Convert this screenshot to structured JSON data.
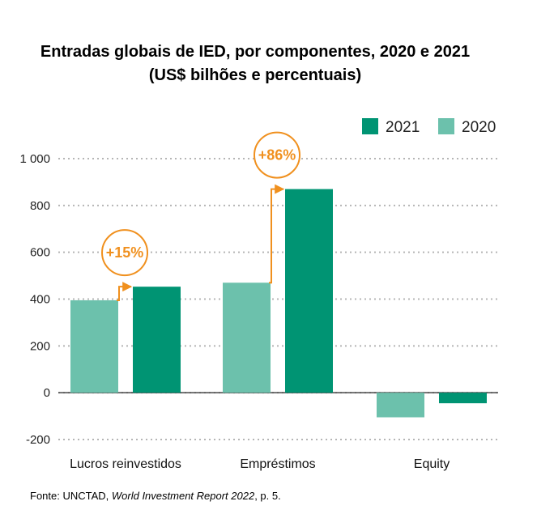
{
  "title_line1": "Entradas globais de IED, por componentes, 2020 e 2021",
  "title_line2": "(US$ bilhões e percentuais)",
  "source": {
    "prefix": "Fonte: UNCTAD, ",
    "italic": "World Investment Report 2022",
    "suffix": ", p. 5."
  },
  "colors": {
    "s2020": "#6cc1ac",
    "s2021": "#009473",
    "annotation": "#f0901e",
    "grid": "#b5b5b5"
  },
  "chart_data": {
    "type": "bar",
    "categories": [
      "Lucros reinvestidos",
      "Empréstimos",
      "Equity"
    ],
    "series": [
      {
        "name": "2020",
        "values": [
          395,
          470,
          -105
        ]
      },
      {
        "name": "2021",
        "values": [
          453,
          870,
          -45
        ]
      }
    ],
    "legend_order": [
      "2021",
      "2020"
    ],
    "legend_position": "top-right",
    "ylim": [
      -200,
      1000
    ],
    "yticks": [
      1000,
      800,
      600,
      400,
      200,
      0,
      -200
    ],
    "ytick_labels": [
      "1 000",
      "800",
      "600",
      "400",
      "200",
      "0",
      "-200"
    ],
    "grid": true,
    "annotations": [
      {
        "category": "Lucros reinvestidos",
        "text": "+15%"
      },
      {
        "category": "Empréstimos",
        "text": "+86%"
      }
    ]
  }
}
